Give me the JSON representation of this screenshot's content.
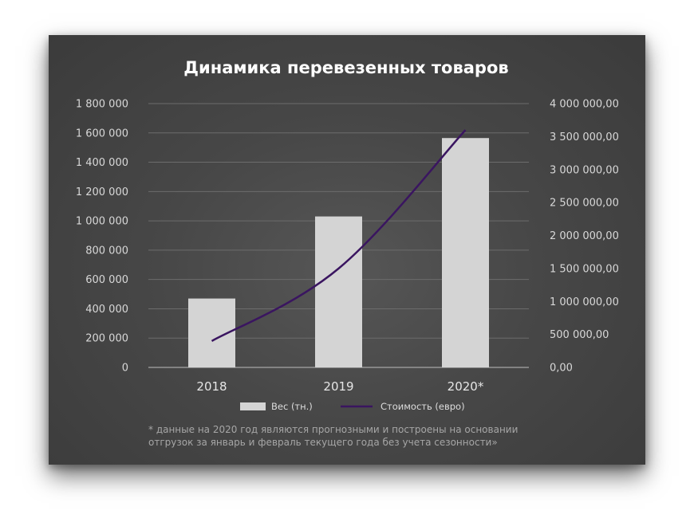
{
  "chart_data": {
    "type": "bar+line",
    "title": "Динамика перевезенных товаров",
    "categories": [
      "2018",
      "2019",
      "2020*"
    ],
    "series": [
      {
        "name": "Вес (тн.)",
        "type": "bar",
        "axis": "left",
        "color": "#d4d4d4",
        "values": [
          470000,
          1030000,
          1565000
        ]
      },
      {
        "name": "Стоимость (евро)",
        "type": "line",
        "axis": "right",
        "color": "#3a1560",
        "values": [
          400000,
          1500000,
          3600000
        ]
      }
    ],
    "y_left": {
      "min": 0,
      "max": 1800000,
      "step": 200000,
      "ticks": [
        "0",
        "200 000",
        "400 000",
        "600 000",
        "800 000",
        "1 000 000",
        "1 200 000",
        "1 400 000",
        "1 600 000",
        "1 800 000"
      ]
    },
    "y_right": {
      "min": 0,
      "max": 4000000,
      "step": 500000,
      "ticks": [
        "0,00",
        "500 000,00",
        "1 000 000,00",
        "1 500 000,00",
        "2 000 000,00",
        "2 500 000,00",
        "3 000 000,00",
        "3 500 000,00",
        "4 000 000,00"
      ]
    },
    "grid": true,
    "legend_position": "bottom",
    "footnote": [
      "* данные на 2020 год являются прогнозными и построены на основании",
      "отгрузок за январь и февраль текущего года без учета сезонности»"
    ]
  }
}
